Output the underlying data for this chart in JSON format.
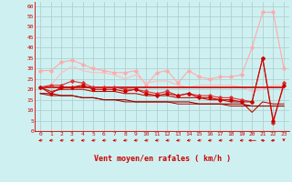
{
  "x": [
    0,
    1,
    2,
    3,
    4,
    5,
    6,
    7,
    8,
    9,
    10,
    11,
    12,
    13,
    14,
    15,
    16,
    17,
    18,
    19,
    20,
    21,
    22,
    23
  ],
  "background_color": "#cff0f0",
  "grid_color": "#aacccc",
  "xlabel": "Vent moyen/en rafales ( km/h )",
  "ylim": [
    0,
    62
  ],
  "xlim": [
    -0.5,
    23.5
  ],
  "yticks": [
    0,
    5,
    10,
    15,
    20,
    25,
    30,
    35,
    40,
    45,
    50,
    55,
    60
  ],
  "series": [
    {
      "y": [
        21,
        18,
        21,
        21,
        22,
        20,
        20,
        20,
        19,
        20,
        18,
        17,
        18,
        17,
        18,
        16,
        16,
        15,
        15,
        14,
        14,
        35,
        5,
        22
      ],
      "color": "#cc0000",
      "lw": 0.8,
      "marker": "D",
      "ms": 1.8,
      "zorder": 5
    },
    {
      "y": [
        21,
        19,
        20,
        20,
        20,
        19,
        19,
        19,
        18,
        18,
        17,
        17,
        17,
        16,
        16,
        16,
        15,
        15,
        14,
        14,
        9,
        14,
        13,
        13
      ],
      "color": "#bb1100",
      "lw": 0.8,
      "marker": null,
      "ms": 0,
      "zorder": 4
    },
    {
      "y": [
        21,
        22,
        22,
        24,
        23,
        21,
        21,
        21,
        20,
        20,
        19,
        18,
        19,
        17,
        18,
        17,
        17,
        16,
        16,
        15,
        14,
        35,
        4,
        23
      ],
      "color": "#dd3333",
      "lw": 0.8,
      "marker": "D",
      "ms": 1.8,
      "zorder": 4
    },
    {
      "y": [
        21,
        21,
        21,
        21,
        21,
        21,
        21,
        21,
        21,
        21,
        21,
        21,
        21,
        21,
        21,
        21,
        21,
        21,
        21,
        21,
        21,
        21,
        21,
        21
      ],
      "color": "#cc0000",
      "lw": 1.2,
      "marker": null,
      "ms": 0,
      "zorder": 3
    },
    {
      "y": [
        29,
        29,
        33,
        34,
        32,
        30,
        29,
        28,
        28,
        29,
        22,
        28,
        29,
        23,
        29,
        26,
        25,
        26,
        26,
        27,
        40,
        57,
        57,
        30
      ],
      "color": "#ffaaaa",
      "lw": 0.8,
      "marker": "D",
      "ms": 1.8,
      "zorder": 2
    },
    {
      "y": [
        21,
        22,
        28,
        31,
        29,
        28,
        28,
        27,
        25,
        27,
        23,
        24,
        24,
        22,
        21,
        22,
        22,
        22,
        22,
        21,
        19,
        20,
        22,
        22
      ],
      "color": "#ffbbbb",
      "lw": 0.8,
      "marker": null,
      "ms": 0,
      "zorder": 2
    },
    {
      "y": [
        18,
        18,
        17,
        17,
        16,
        16,
        15,
        15,
        15,
        14,
        14,
        14,
        14,
        14,
        14,
        13,
        13,
        13,
        13,
        13,
        12,
        12,
        12,
        12
      ],
      "color": "#990000",
      "lw": 0.8,
      "marker": null,
      "ms": 0,
      "zorder": 4
    },
    {
      "y": [
        18,
        17,
        17,
        17,
        16,
        16,
        15,
        15,
        14,
        14,
        14,
        14,
        14,
        13,
        13,
        13,
        13,
        13,
        12,
        12,
        12,
        12,
        12,
        12
      ],
      "color": "#aa0000",
      "lw": 0.7,
      "marker": null,
      "ms": 0,
      "zorder": 3
    }
  ],
  "arrow_angles": [
    225,
    225,
    225,
    225,
    225,
    225,
    225,
    225,
    225,
    225,
    225,
    225,
    225,
    225,
    225,
    225,
    225,
    225,
    225,
    225,
    270,
    315,
    45,
    180
  ]
}
